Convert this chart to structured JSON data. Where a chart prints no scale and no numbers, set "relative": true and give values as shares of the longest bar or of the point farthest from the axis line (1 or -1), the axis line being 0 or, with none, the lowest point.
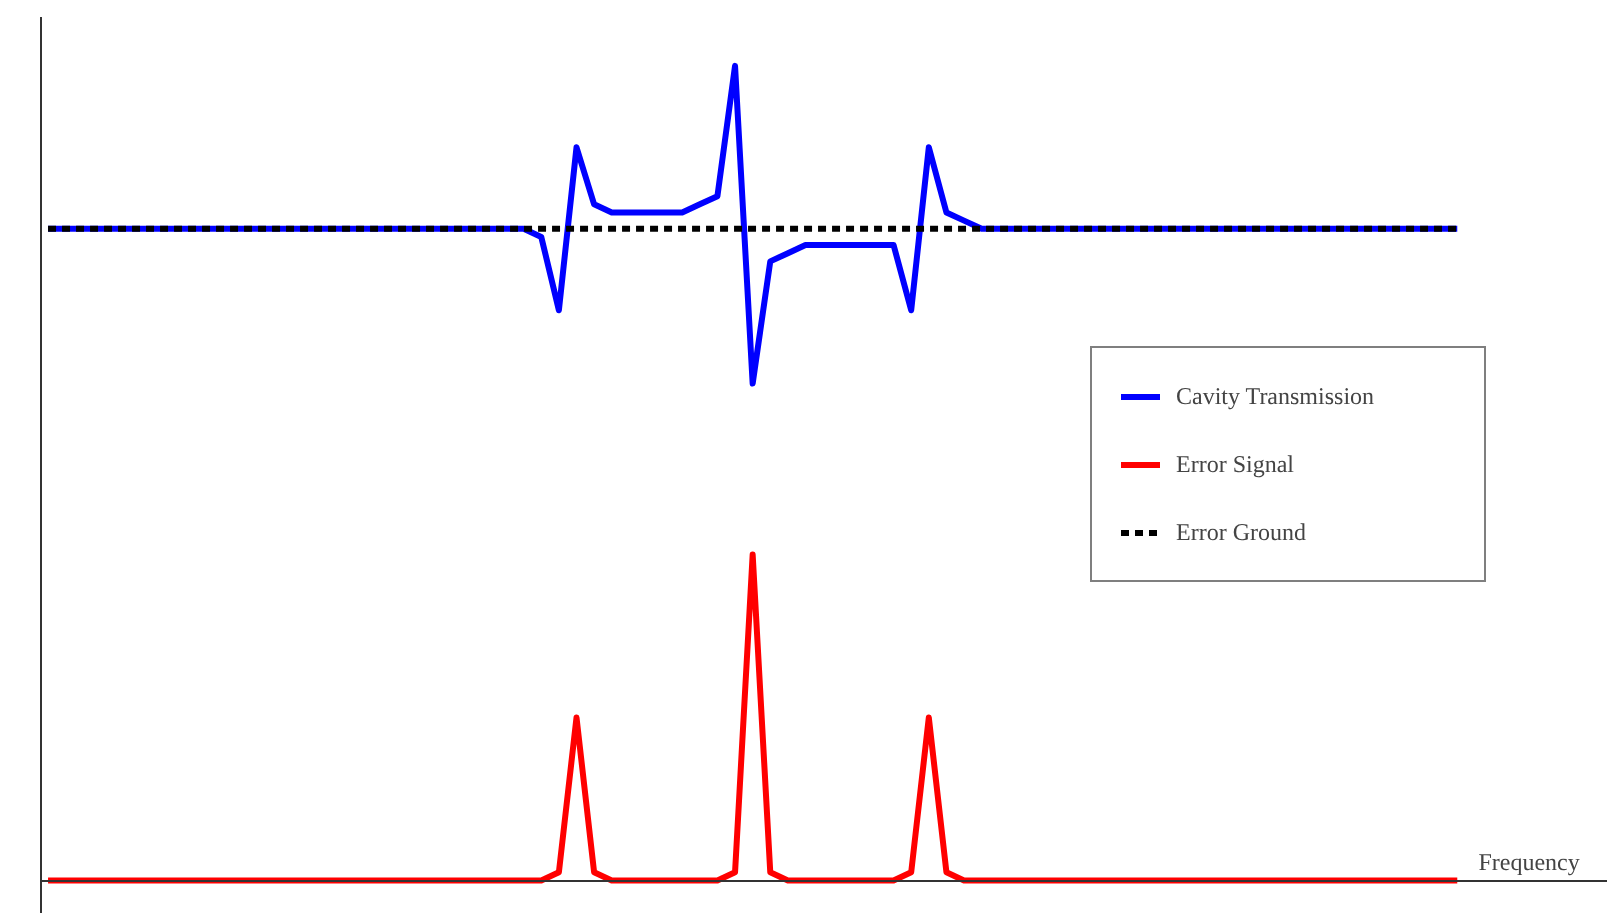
{
  "chart_data": {
    "type": "line",
    "relative": true,
    "xlabel": "Frequency",
    "legend": "right",
    "grid": false,
    "marker": "none",
    "categories": [
      null,
      null,
      null,
      null,
      null,
      null,
      null,
      null,
      null,
      null,
      null,
      null,
      null,
      null,
      null,
      null,
      null,
      null,
      null,
      null,
      null,
      null,
      null,
      null,
      null,
      null,
      null,
      null,
      null,
      null,
      null,
      null,
      null,
      null,
      null,
      null,
      null,
      null,
      null,
      null,
      null,
      null,
      null,
      null,
      null,
      null,
      null,
      null,
      null,
      null,
      null,
      null,
      null,
      null,
      null,
      null,
      null,
      null,
      null,
      null,
      null,
      null,
      null,
      null,
      null,
      null,
      null,
      null,
      null,
      null,
      null,
      null,
      null,
      null,
      null,
      null,
      null,
      null,
      null,
      null,
      null
    ],
    "series": [
      {
        "name": "Cavity Transmission",
        "color": "#0000ff",
        "line_style": "solid",
        "values": [
          0.8,
          0.8,
          0.8,
          0.8,
          0.8,
          0.8,
          0.8,
          0.8,
          0.8,
          0.8,
          0.8,
          0.8,
          0.8,
          0.8,
          0.8,
          0.8,
          0.8,
          0.8,
          0.8,
          0.8,
          0.8,
          0.8,
          0.8,
          0.8,
          0.8,
          0.8,
          0.8,
          0.8,
          0.79,
          0.7,
          0.9,
          0.83,
          0.82,
          0.82,
          0.82,
          0.82,
          0.82,
          0.83,
          0.84,
          1.0,
          0.61,
          0.76,
          0.77,
          0.78,
          0.78,
          0.78,
          0.78,
          0.78,
          0.78,
          0.7,
          0.9,
          0.82,
          0.81,
          0.8,
          0.8,
          0.8,
          0.8,
          0.8,
          0.8,
          0.8,
          0.8,
          0.8,
          0.8,
          0.8,
          0.8,
          0.8,
          0.8,
          0.8,
          0.8,
          0.8,
          0.8,
          0.8,
          0.8,
          0.8,
          0.8,
          0.8,
          0.8,
          0.8,
          0.8,
          0.8,
          0.8
        ]
      },
      {
        "name": "Error Signal",
        "color": "#ff0000",
        "line_style": "solid",
        "values": [
          0,
          0,
          0,
          0,
          0,
          0,
          0,
          0,
          0,
          0,
          0,
          0,
          0,
          0,
          0,
          0,
          0,
          0,
          0,
          0,
          0,
          0,
          0,
          0,
          0,
          0,
          0,
          0,
          0,
          0.01,
          0.2,
          0.01,
          0,
          0,
          0,
          0,
          0,
          0,
          0,
          0.01,
          0.4,
          0.01,
          0,
          0,
          0,
          0,
          0,
          0,
          0,
          0.01,
          0.2,
          0.01,
          0,
          0,
          0,
          0,
          0,
          0,
          0,
          0,
          0,
          0,
          0,
          0,
          0,
          0,
          0,
          0,
          0,
          0,
          0,
          0,
          0,
          0,
          0,
          0,
          0,
          0,
          0,
          0,
          0
        ]
      },
      {
        "name": "Error Ground",
        "color": "#000000",
        "line_style": "dotted",
        "values": [
          0.8,
          0.8,
          0.8,
          0.8,
          0.8,
          0.8,
          0.8,
          0.8,
          0.8,
          0.8,
          0.8,
          0.8,
          0.8,
          0.8,
          0.8,
          0.8,
          0.8,
          0.8,
          0.8,
          0.8,
          0.8,
          0.8,
          0.8,
          0.8,
          0.8,
          0.8,
          0.8,
          0.8,
          0.8,
          0.8,
          0.8,
          0.8,
          0.8,
          0.8,
          0.8,
          0.8,
          0.8,
          0.8,
          0.8,
          0.8,
          0.8,
          0.8,
          0.8,
          0.8,
          0.8,
          0.8,
          0.8,
          0.8,
          0.8,
          0.8,
          0.8,
          0.8,
          0.8,
          0.8,
          0.8,
          0.8,
          0.8,
          0.8,
          0.8,
          0.8,
          0.8,
          0.8,
          0.8,
          0.8,
          0.8,
          0.8,
          0.8,
          0.8,
          0.8,
          0.8,
          0.8,
          0.8,
          0.8,
          0.8,
          0.8,
          0.8,
          0.8,
          0.8,
          0.8,
          0.8,
          0.8
        ]
      }
    ]
  }
}
